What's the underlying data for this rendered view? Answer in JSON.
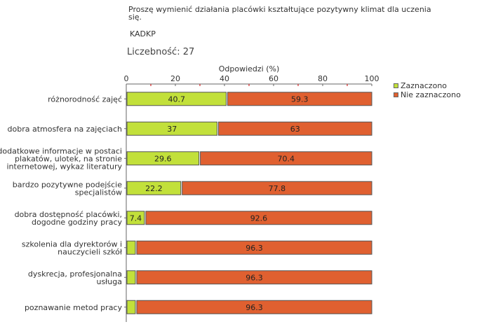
{
  "header": {
    "question": "Proszę wymienić działania  placówki kształtujące  pozytywny klimat  dla uczenia się.",
    "code": "KADKP",
    "count_label": "Liczebność:",
    "count_value": "27"
  },
  "legend": {
    "items": [
      {
        "label": "Zaznaczono",
        "color": "#c2e03a"
      },
      {
        "label": "Nie zaznaczono",
        "color": "#e06030"
      }
    ]
  },
  "chart_data": {
    "type": "bar",
    "orientation": "horizontal",
    "stacked": true,
    "title": "",
    "xlabel": "Odpowiedzi (%)",
    "ylabel": "",
    "xlim": [
      0,
      100
    ],
    "xticks": [
      0,
      20,
      40,
      60,
      80,
      100
    ],
    "categories": [
      [
        "różnorodność zajęć"
      ],
      [
        "dobra atmosfera na zajęciach"
      ],
      [
        "dodatkowe informacje w postaci",
        "plakatów, ulotek, na stronie",
        "internetowej, wykaz literatury"
      ],
      [
        "bardzo pozytywne podejście",
        "specjalistów"
      ],
      [
        "dobra dostępność placówki,",
        "dogodne godziny pracy"
      ],
      [
        "szkolenia dla dyrektorów i",
        "nauczycieli szkół"
      ],
      [
        "dyskrecja, profesjonalna",
        "usługa"
      ],
      [
        "poznawanie metod pracy"
      ]
    ],
    "series": [
      {
        "name": "Zaznaczono",
        "color": "#c2e03a",
        "values": [
          40.7,
          37,
          29.6,
          22.2,
          7.4,
          3.7,
          3.7,
          3.7
        ],
        "labels": [
          "40.7",
          "37",
          "29.6",
          "22.2",
          "7.4",
          "",
          "",
          ""
        ]
      },
      {
        "name": "Nie zaznaczono",
        "color": "#e06030",
        "values": [
          59.3,
          63,
          70.4,
          77.8,
          92.6,
          96.3,
          96.3,
          96.3
        ],
        "labels": [
          "59.3",
          "63",
          "70.4",
          "77.8",
          "92.6",
          "96.3",
          "96.3",
          "96.3"
        ]
      }
    ]
  }
}
